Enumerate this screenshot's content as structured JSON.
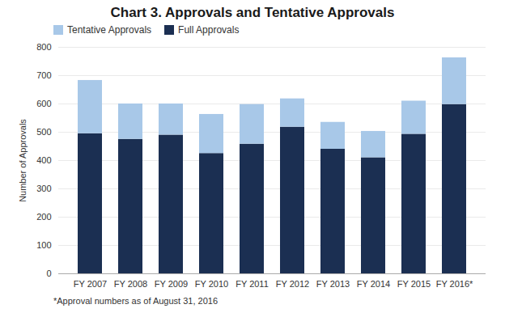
{
  "chart_data": {
    "type": "bar",
    "stacked": true,
    "title": "Chart 3. Approvals and Tentative Approvals",
    "footnote": "*Approval numbers as of August 31, 2016",
    "ylabel": "Number of Approvals",
    "categories": [
      "FY 2007",
      "FY 2008",
      "FY 2009",
      "FY 2010",
      "FY 2011",
      "FY 2012",
      "FY 2013",
      "FY 2014",
      "FY 2015",
      "FY 2016*"
    ],
    "series": [
      {
        "name": "Full Approvals",
        "color": "#1b2f52",
        "values": [
          495,
          475,
          490,
          425,
          458,
          518,
          440,
          410,
          493,
          598
        ]
      },
      {
        "name": "Tentative Approvals",
        "color": "#a8c8e8",
        "values": [
          188,
          125,
          110,
          138,
          140,
          100,
          95,
          93,
          117,
          165
        ]
      }
    ],
    "ylim": [
      0,
      800
    ],
    "yticks": [
      0,
      100,
      200,
      300,
      400,
      500,
      600,
      700,
      800
    ],
    "grid": true,
    "legend": "upper left"
  }
}
